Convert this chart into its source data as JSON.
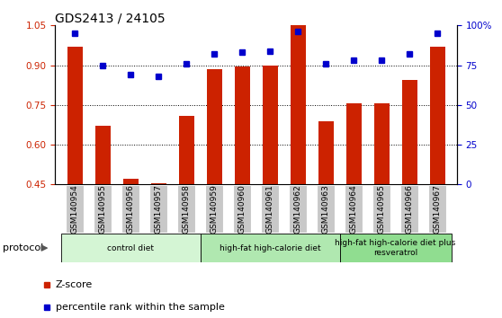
{
  "title": "GDS2413 / 24105",
  "samples": [
    "GSM140954",
    "GSM140955",
    "GSM140956",
    "GSM140957",
    "GSM140958",
    "GSM140959",
    "GSM140960",
    "GSM140961",
    "GSM140962",
    "GSM140963",
    "GSM140964",
    "GSM140965",
    "GSM140966",
    "GSM140967"
  ],
  "z_scores": [
    0.97,
    0.67,
    0.47,
    0.455,
    0.71,
    0.885,
    0.895,
    0.9,
    1.05,
    0.69,
    0.755,
    0.755,
    0.845,
    0.97
  ],
  "percentile_ranks": [
    95,
    75,
    69,
    68,
    76,
    82,
    83,
    84,
    96,
    76,
    78,
    78,
    82,
    95
  ],
  "bar_color": "#cc2200",
  "dot_color": "#0000cc",
  "ylim_left": [
    0.45,
    1.05
  ],
  "ylim_right": [
    0,
    100
  ],
  "yticks_left": [
    0.45,
    0.6,
    0.75,
    0.9,
    1.05
  ],
  "yticks_right": [
    0,
    25,
    50,
    75,
    100
  ],
  "ytick_labels_right": [
    "0",
    "25",
    "50",
    "75",
    "100%"
  ],
  "groups": [
    {
      "label": "control diet",
      "start": 0,
      "end": 4,
      "color": "#d4f5d4"
    },
    {
      "label": "high-fat high-calorie diet",
      "start": 5,
      "end": 9,
      "color": "#b0e8b0"
    },
    {
      "label": "high-fat high-calorie diet plus\nresveratrol",
      "start": 10,
      "end": 13,
      "color": "#90dd90"
    }
  ],
  "legend_items": [
    {
      "color": "#cc2200",
      "label": "Z-score"
    },
    {
      "color": "#0000cc",
      "label": "percentile rank within the sample"
    }
  ],
  "protocol_label": "protocol",
  "bar_width": 0.55,
  "background_color": "#ffffff",
  "tick_area_color": "#c8c8c8",
  "title_fontsize": 10,
  "tick_fontsize": 7.5
}
